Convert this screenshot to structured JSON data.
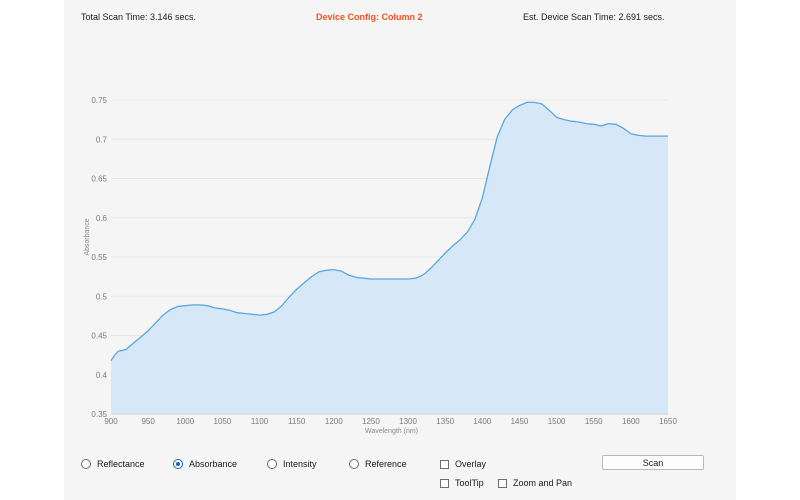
{
  "header": {
    "total_scan_time": "Total Scan Time: 3.146 secs.",
    "device_config": "Device Config: Column 2",
    "est_scan_time": "Est. Device Scan Time: 2.691 secs."
  },
  "colors": {
    "accent_orange": "#f4511e",
    "series_line": "#5aa6e0",
    "series_fill": "#d6e8f8",
    "radio_selected": "#1565c0"
  },
  "chart_data": {
    "type": "area",
    "title": "",
    "xlabel": "Wavelength (nm)",
    "ylabel": "Absorbance",
    "xlim": [
      900,
      1650
    ],
    "ylim": [
      0.35,
      0.75
    ],
    "grid": true,
    "x_ticks": [
      900,
      950,
      1000,
      1050,
      1100,
      1150,
      1200,
      1250,
      1300,
      1350,
      1400,
      1450,
      1500,
      1550,
      1600,
      1650
    ],
    "y_ticks": [
      0.35,
      0.4,
      0.45,
      0.5,
      0.55,
      0.6,
      0.65,
      0.7,
      0.75
    ],
    "y_tick_labels": [
      "0.35",
      "0.4",
      "0.45",
      "0.5",
      "0.55",
      "0.6",
      "0.65",
      "0.7",
      "0.75"
    ],
    "series": [
      {
        "x": [
          900,
          905,
          910,
          920,
          930,
          940,
          950,
          960,
          970,
          980,
          990,
          1000,
          1010,
          1020,
          1030,
          1040,
          1050,
          1060,
          1070,
          1080,
          1090,
          1100,
          1110,
          1120,
          1130,
          1140,
          1150,
          1160,
          1170,
          1180,
          1190,
          1200,
          1210,
          1220,
          1230,
          1240,
          1250,
          1260,
          1270,
          1280,
          1290,
          1300,
          1310,
          1320,
          1330,
          1340,
          1350,
          1360,
          1370,
          1380,
          1390,
          1400,
          1410,
          1420,
          1430,
          1440,
          1450,
          1460,
          1470,
          1480,
          1490,
          1500,
          1510,
          1520,
          1530,
          1540,
          1550,
          1560,
          1570,
          1580,
          1590,
          1600,
          1610,
          1620,
          1630,
          1640,
          1650
        ],
        "values": [
          0.418,
          0.425,
          0.43,
          0.432,
          0.44,
          0.448,
          0.456,
          0.466,
          0.476,
          0.483,
          0.487,
          0.488,
          0.489,
          0.489,
          0.488,
          0.485,
          0.484,
          0.482,
          0.479,
          0.478,
          0.477,
          0.476,
          0.477,
          0.48,
          0.488,
          0.499,
          0.509,
          0.517,
          0.525,
          0.531,
          0.533,
          0.534,
          0.532,
          0.527,
          0.524,
          0.523,
          0.522,
          0.522,
          0.522,
          0.522,
          0.522,
          0.522,
          0.523,
          0.527,
          0.535,
          0.545,
          0.555,
          0.564,
          0.572,
          0.582,
          0.598,
          0.625,
          0.665,
          0.703,
          0.725,
          0.737,
          0.743,
          0.747,
          0.747,
          0.745,
          0.737,
          0.728,
          0.725,
          0.723,
          0.722,
          0.72,
          0.719,
          0.717,
          0.72,
          0.719,
          0.714,
          0.707,
          0.705,
          0.704,
          0.704,
          0.704,
          0.704
        ]
      }
    ]
  },
  "controls": {
    "modes": [
      {
        "label": "Reflectance",
        "selected": false
      },
      {
        "label": "Absorbance",
        "selected": true
      },
      {
        "label": "Intensity",
        "selected": false
      },
      {
        "label": "Reference",
        "selected": false
      }
    ],
    "overlay_label": "Overlay",
    "tooltip_label": "ToolTip",
    "zoom_pan_label": "Zoom and Pan",
    "scan_label": "Scan"
  }
}
